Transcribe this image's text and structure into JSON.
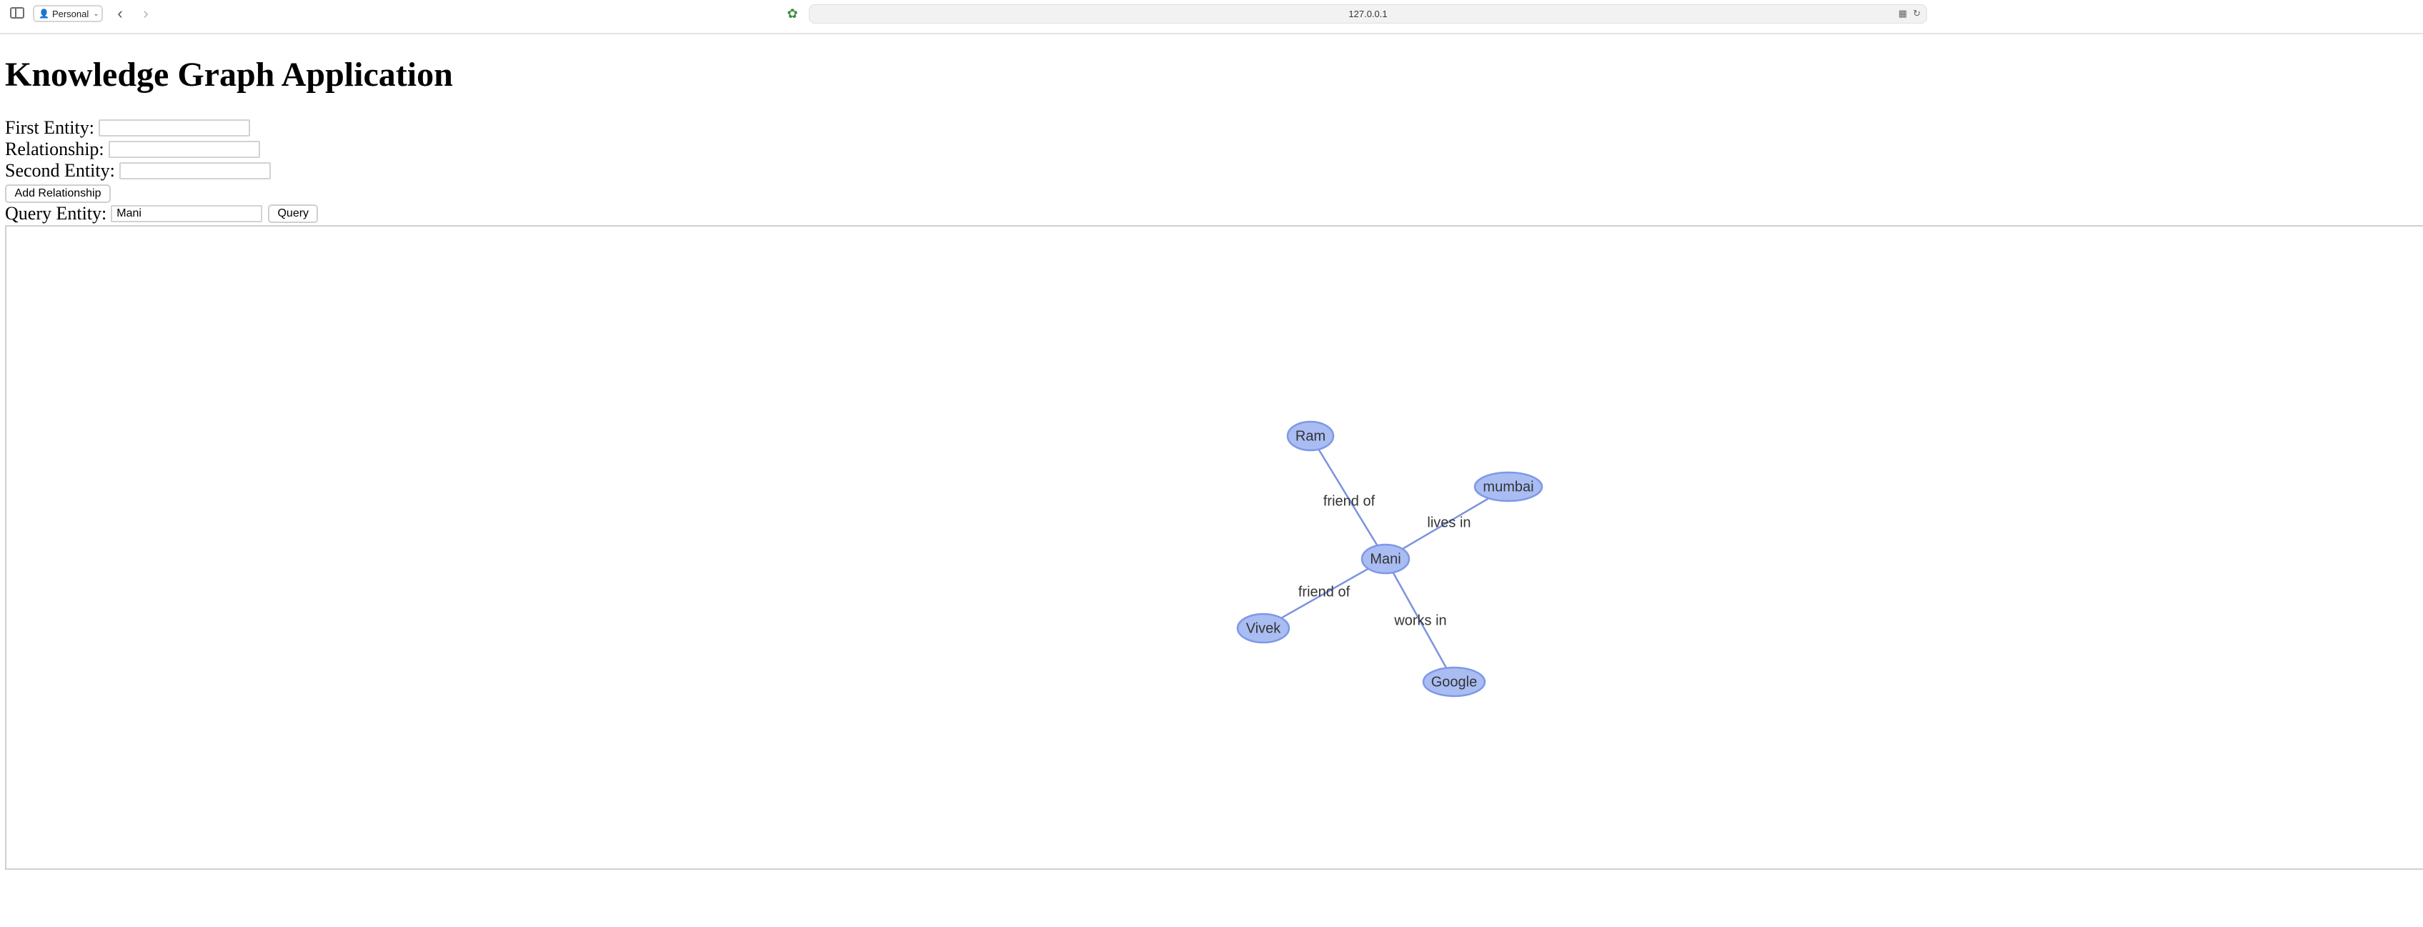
{
  "browser": {
    "profile_label": "Personal",
    "url": "127.0.0.1"
  },
  "page": {
    "title": "Knowledge Graph Application",
    "first_entity_label": "First Entity:",
    "first_entity_value": "",
    "relationship_label": "Relationship:",
    "relationship_value": "",
    "second_entity_label": "Second Entity:",
    "second_entity_value": "",
    "add_button_label": "Add Relationship",
    "query_label": "Query Entity:",
    "query_value": "Mani",
    "query_button_label": "Query"
  },
  "graph": {
    "nodes": [
      {
        "id": "Ram",
        "label": "Ram"
      },
      {
        "id": "mumbai",
        "label": "mumbai"
      },
      {
        "id": "Mani",
        "label": "Mani"
      },
      {
        "id": "Vivek",
        "label": "Vivek"
      },
      {
        "id": "Google",
        "label": "Google"
      }
    ],
    "edges": [
      {
        "from": "Mani",
        "to": "Ram",
        "label": "friend of"
      },
      {
        "from": "Mani",
        "to": "mumbai",
        "label": "lives in"
      },
      {
        "from": "Mani",
        "to": "Vivek",
        "label": "friend of"
      },
      {
        "from": "Mani",
        "to": "Google",
        "label": "works in"
      }
    ],
    "colors": {
      "node_fill": "#a9bdf3",
      "node_border": "#7e98e6",
      "edge": "#7b93e0"
    }
  }
}
